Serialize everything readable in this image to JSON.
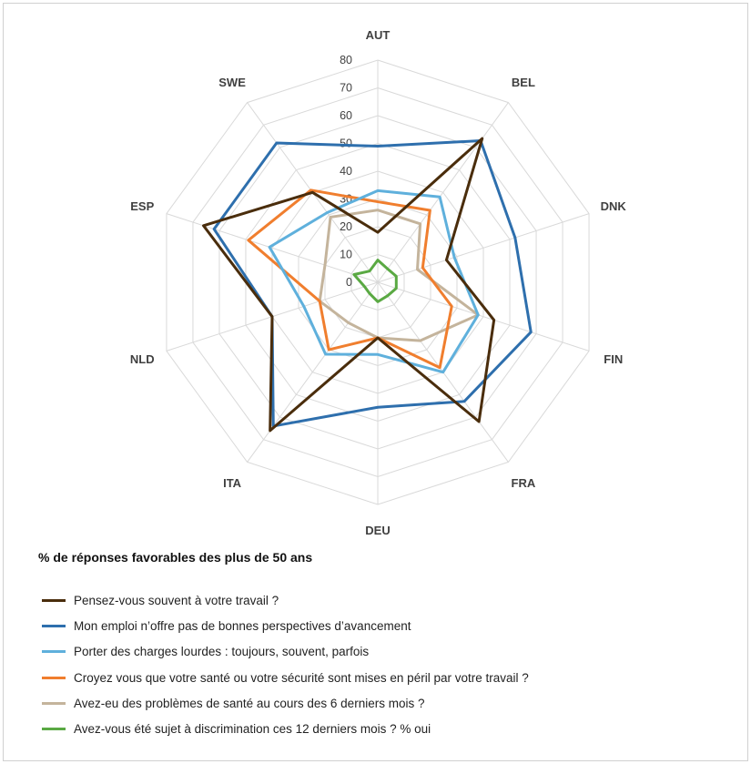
{
  "chart_data": {
    "type": "radar",
    "categories": [
      "AUT",
      "BEL",
      "DNK",
      "FIN",
      "FRA",
      "DEU",
      "ITA",
      "NLD",
      "ESP",
      "SWE"
    ],
    "rmax": 80,
    "ticks": [
      0,
      10,
      20,
      30,
      40,
      50,
      60,
      70,
      80
    ],
    "subtitle": "% de réponses favorables des plus de 50 ans",
    "series": [
      {
        "name": "Pensez-vous souvent à votre travail ?",
        "color": "#4a2d0c",
        "values": [
          18,
          64,
          26,
          44,
          62,
          20,
          66,
          40,
          66,
          40
        ]
      },
      {
        "name": "Mon emploi n’offre pas de bonnes perspectives d’avancement",
        "color": "#2e6fad",
        "values": [
          49,
          63,
          52,
          58,
          53,
          45,
          64,
          40,
          62,
          62
        ]
      },
      {
        "name": "Porter des charges lourdes : toujours, souvent, parfois",
        "color": "#5fb0dc",
        "values": [
          33,
          38,
          29,
          38,
          40,
          26,
          32,
          28,
          41,
          31
        ]
      },
      {
        "name": "Croyez vous que votre santé ou votre sécurité sont mises en péril par votre travail ?",
        "color": "#f07e2e",
        "values": [
          29,
          32,
          17,
          28,
          38,
          20,
          30,
          22,
          49,
          41
        ]
      },
      {
        "name": "Avez-eu des problèmes de santé au cours des 6 derniers mois ?",
        "color": "#c4b49c",
        "values": [
          26,
          26,
          15,
          38,
          26,
          20,
          18,
          22,
          20,
          29
        ]
      },
      {
        "name": "Avez-vous été sujet à discrimination ces 12 derniers mois ?  % oui",
        "color": "#5aa943",
        "values": [
          8,
          6,
          7,
          7,
          6,
          7,
          5,
          5,
          9,
          5
        ]
      }
    ]
  }
}
